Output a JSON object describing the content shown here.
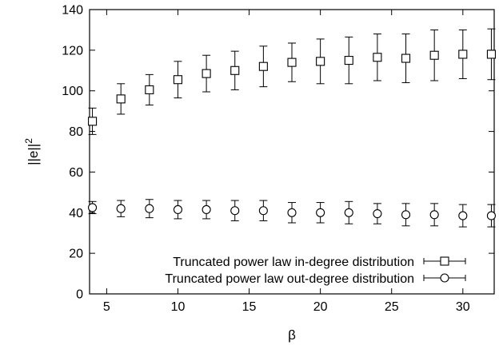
{
  "chart_data": {
    "type": "scatter",
    "xlabel": "β",
    "ylabel_base": "||e||",
    "ylabel_sup": "2",
    "xlim": [
      3.8,
      32.2
    ],
    "ylim": [
      0,
      140
    ],
    "xticks": [
      5,
      10,
      15,
      20,
      25,
      30
    ],
    "yticks": [
      0,
      20,
      40,
      60,
      80,
      100,
      120,
      140
    ],
    "grid": false,
    "legend_position": "bottom-right",
    "x": [
      4,
      6,
      8,
      10,
      12,
      14,
      16,
      18,
      20,
      22,
      24,
      26,
      28,
      30,
      32
    ],
    "series": [
      {
        "name": "Truncated power law in-degree distribution",
        "marker": "square",
        "values": [
          85,
          96,
          100.5,
          105.5,
          108.5,
          110,
          112,
          114,
          114.5,
          115,
          116.5,
          116,
          117.5,
          118,
          118
        ],
        "error": [
          6.5,
          7.5,
          7.5,
          9,
          9,
          9.5,
          10,
          9.5,
          11,
          11.5,
          11.5,
          12,
          12.5,
          12,
          12.5
        ]
      },
      {
        "name": "Truncated power law out-degree distribution",
        "marker": "circle",
        "values": [
          42.5,
          42,
          42,
          41.5,
          41.5,
          41,
          41,
          40,
          40,
          40,
          39.5,
          39,
          39,
          38.5,
          38.5
        ],
        "error": [
          3,
          4,
          4.5,
          4.5,
          4.5,
          5,
          5,
          5,
          5,
          5.5,
          5,
          5.5,
          5.5,
          5.5,
          5.5
        ]
      }
    ]
  }
}
